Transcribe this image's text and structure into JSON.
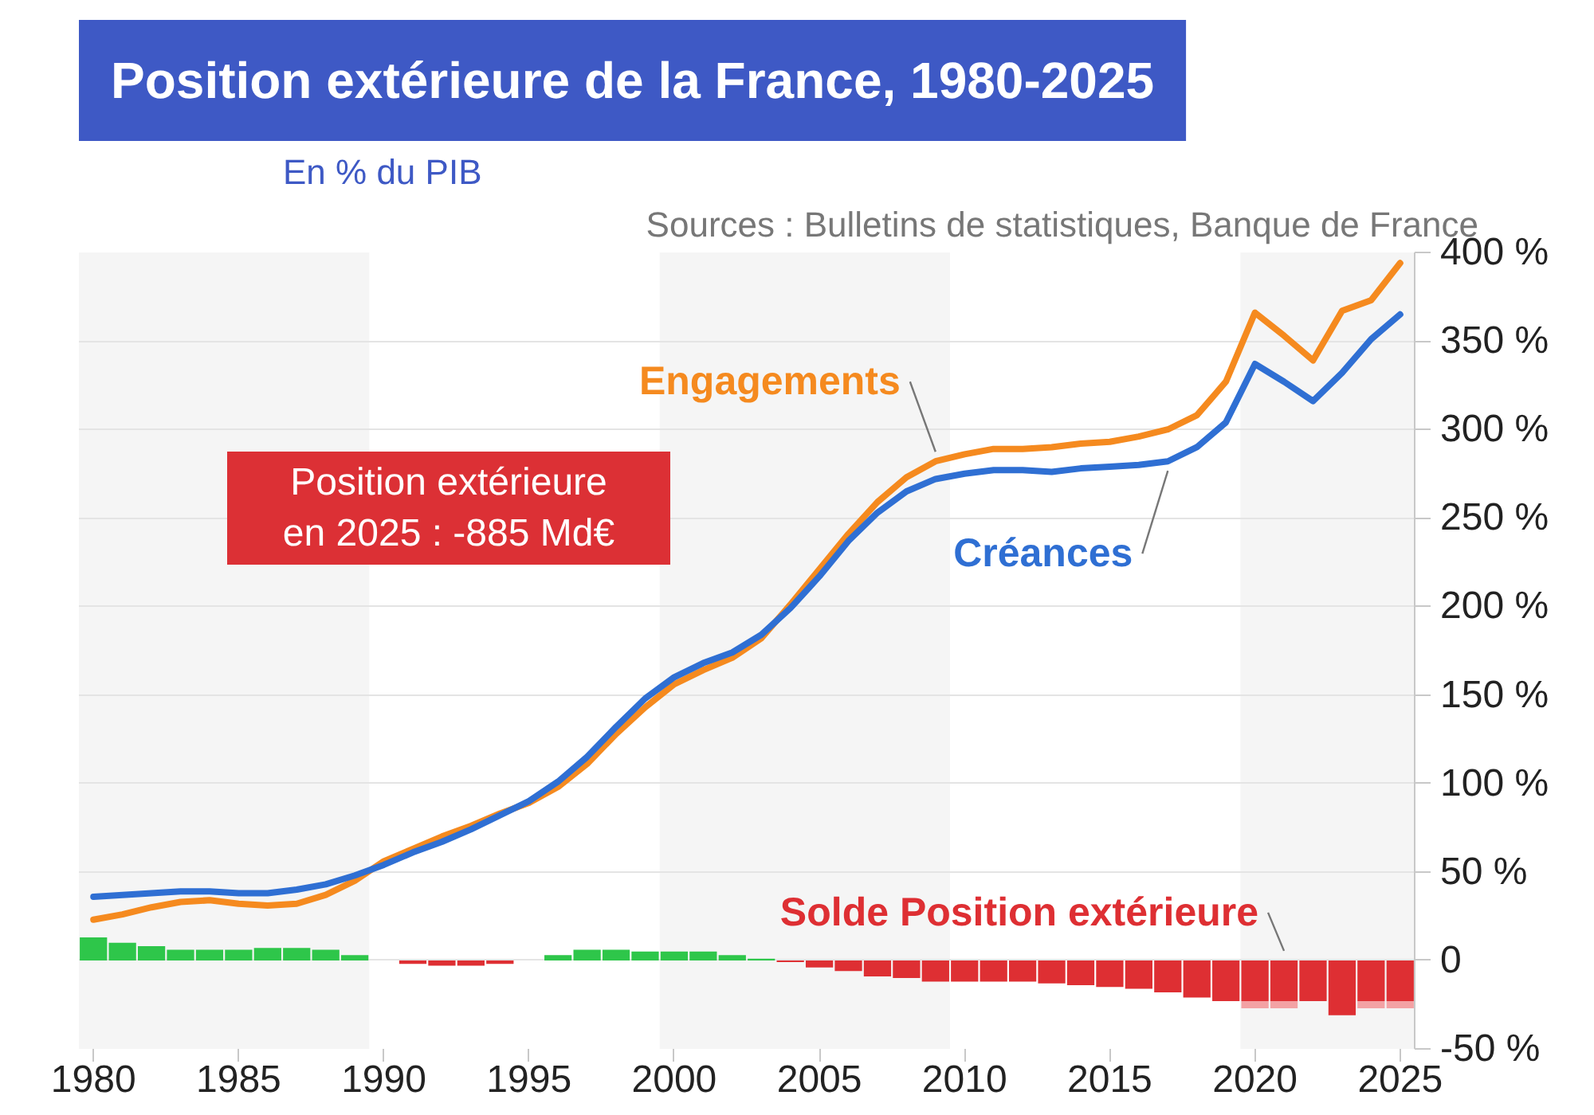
{
  "chart_data": {
    "type": "line",
    "title": "Position extérieure de la France, 1980-2025",
    "subtitle": "En % du PIB",
    "annotations": [
      "Sources : Bulletins de statistiques, Banque de France",
      "Position extérieure en 2025 : -885 Md€"
    ],
    "x": [
      1980,
      1981,
      1982,
      1983,
      1984,
      1985,
      1986,
      1987,
      1988,
      1989,
      1990,
      1991,
      1992,
      1993,
      1994,
      1995,
      1996,
      1997,
      1998,
      1999,
      2000,
      2001,
      2002,
      2003,
      2004,
      2005,
      2006,
      2007,
      2008,
      2009,
      2010,
      2011,
      2012,
      2013,
      2014,
      2015,
      2016,
      2017,
      2018,
      2019,
      2020,
      2021,
      2022,
      2023,
      2024,
      2025
    ],
    "xlim": [
      1979.5,
      2025.5
    ],
    "xticks": [
      1980,
      1985,
      1990,
      1995,
      2000,
      2005,
      2010,
      2015,
      2020,
      2025
    ],
    "ylim": [
      -50,
      400
    ],
    "yticks": [
      {
        "value": -50,
        "label": "-50 %"
      },
      0,
      {
        "value": 50,
        "label": "50 %"
      },
      {
        "value": 100,
        "label": "100 %"
      },
      {
        "value": 150,
        "label": "150 %"
      },
      {
        "value": 200,
        "label": "200 %"
      },
      {
        "value": 250,
        "label": "250 %"
      },
      {
        "value": 300,
        "label": "300 %"
      },
      {
        "value": 350,
        "label": "350 %"
      },
      {
        "value": 400,
        "label": "400 %"
      }
    ],
    "grid": "y",
    "stacked": true,
    "bands": [
      {
        "axis": "x",
        "from": 1979.5,
        "to": 1989.5,
        "color": "#f5f5f5"
      },
      {
        "axis": "x",
        "from": 1999.5,
        "to": 2009.5,
        "color": "#f5f5f5"
      },
      {
        "axis": "x",
        "from": 2019.5,
        "to": 2025.5,
        "color": "#f5f5f5"
      }
    ],
    "series": [
      {
        "name": "Engagements",
        "color": "#f58a1f",
        "values": [
          23,
          26,
          30,
          33,
          34,
          32,
          31,
          32,
          37,
          45,
          56,
          63,
          70,
          76,
          83,
          89,
          98,
          111,
          128,
          143,
          156,
          164,
          171,
          182,
          201,
          221,
          241,
          259,
          273,
          282,
          286,
          289,
          289,
          290,
          292,
          293,
          296,
          300,
          308,
          327,
          366,
          353,
          339,
          367,
          373,
          394
        ]
      },
      {
        "name": "Créances",
        "color": "#2f6fd3",
        "values": [
          36,
          37,
          38,
          39,
          39,
          38,
          38,
          40,
          43,
          48,
          54,
          61,
          67,
          74,
          82,
          90,
          101,
          115,
          132,
          148,
          160,
          168,
          174,
          184,
          199,
          217,
          237,
          253,
          265,
          272,
          275,
          277,
          277,
          276,
          278,
          279,
          280,
          282,
          290,
          304,
          337,
          327,
          316,
          332,
          351,
          365
        ]
      },
      {
        "name": "Solde Position extérieure",
        "type": "bar",
        "values": [
          13,
          10,
          8,
          6,
          6,
          6,
          7,
          7,
          6,
          3,
          null,
          -2,
          -3,
          -3,
          -2,
          null,
          3,
          6,
          6,
          5,
          5,
          5,
          3,
          1,
          -1,
          -4,
          -6,
          -9,
          -10,
          -12,
          -12,
          -12,
          -12,
          -13,
          -14,
          -15,
          -16,
          -18,
          -21,
          -23,
          -23,
          -23,
          -23,
          -31,
          -23,
          -23
        ],
        "colors": [
          "#2ec64a",
          "#2ec64a",
          "#2ec64a",
          "#2ec64a",
          "#2ec64a",
          "#2ec64a",
          "#2ec64a",
          "#2ec64a",
          "#2ec64a",
          "#2ec64a",
          "#2ec64a",
          "#de2f33",
          "#de2f33",
          "#de2f33",
          "#de2f33",
          "#2ec64a",
          "#2ec64a",
          "#2ec64a",
          "#2ec64a",
          "#2ec64a",
          "#2ec64a",
          "#2ec64a",
          "#2ec64a",
          "#2ec64a",
          "#de2f33",
          "#de2f33",
          "#de2f33",
          "#de2f33",
          "#de2f33",
          "#de2f33",
          "#de2f33",
          "#de2f33",
          "#de2f33",
          "#de2f33",
          "#de2f33",
          "#de2f33",
          "#de2f33",
          "#de2f33",
          "#de2f33",
          "#de2f33",
          "#de2f33",
          "#de2f33",
          "#de2f33",
          "#de2f33",
          "#de2f33",
          "#de2f33"
        ]
      },
      {
        "type": "bar",
        "color": "#f3a2a4",
        "values": [
          null,
          null,
          null,
          null,
          null,
          null,
          null,
          null,
          null,
          null,
          null,
          null,
          null,
          null,
          null,
          null,
          null,
          null,
          null,
          null,
          null,
          null,
          null,
          null,
          null,
          null,
          null,
          null,
          null,
          null,
          null,
          null,
          null,
          null,
          null,
          null,
          null,
          null,
          null,
          null,
          -4,
          -4,
          null,
          null,
          -4,
          -4
        ]
      }
    ]
  }
}
